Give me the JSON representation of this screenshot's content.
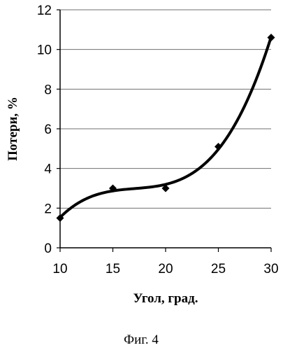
{
  "chart_data": {
    "type": "scatter",
    "xlabel": "Угол, град.",
    "ylabel": "Потери, %",
    "caption": "Фиг. 4",
    "xlim": [
      10,
      30
    ],
    "ylim": [
      0,
      12
    ],
    "x_ticks": [
      10,
      15,
      20,
      25,
      30
    ],
    "y_ticks": [
      0,
      2,
      4,
      6,
      8,
      10,
      12
    ],
    "grid": "horizontal",
    "legend": "none",
    "series": [
      {
        "marker": "diamond",
        "color": "#000000",
        "x": [
          10,
          15,
          20,
          25,
          30
        ],
        "y": [
          1.5,
          3.0,
          3.0,
          5.1,
          10.6
        ]
      }
    ],
    "trendline": {
      "type": "polynomial",
      "order": 3,
      "color": "#000000"
    }
  }
}
